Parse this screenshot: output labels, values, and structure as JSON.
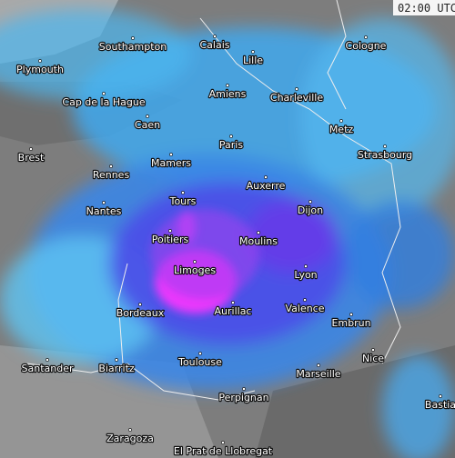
{
  "timestamp": "02:00 UTC",
  "cities": [
    "Southampton",
    "Plymouth",
    "Calais",
    "Lille",
    "Cologne",
    "Amiens",
    "Charleville",
    "Cap de la Hague",
    "Caen",
    "Metz",
    "Paris",
    "Strasbourg",
    "Brest",
    "Mamers",
    "Rennes",
    "Auxerre",
    "Tours",
    "Nantes",
    "Dijon",
    "Poitiers",
    "Moulins",
    "Limoges",
    "Lyon",
    "Bordeaux",
    "Aurillac",
    "Valence",
    "Embrun",
    "Toulouse",
    "Nice",
    "Santander",
    "Biarritz",
    "Marseille",
    "Perpignan",
    "Bastia",
    "Zaragoza",
    "El Prat de Llobregat"
  ]
}
